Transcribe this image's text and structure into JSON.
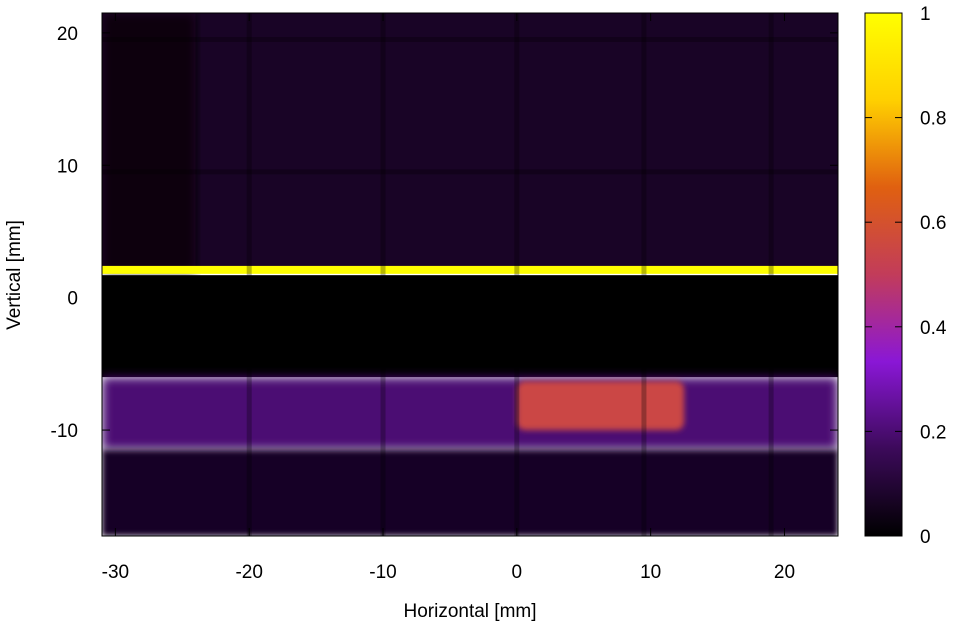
{
  "chart_data": {
    "type": "heatmap",
    "title": "",
    "xlabel": "Horizontal [mm]",
    "ylabel": "Vertical [mm]",
    "xlim": [
      -31,
      24
    ],
    "ylim": [
      -18,
      21.5
    ],
    "x_ticks": [
      -30,
      -20,
      -10,
      0,
      10,
      20
    ],
    "x_tick_labels": [
      "-30",
      "-20",
      "-10",
      "0",
      "10",
      "20"
    ],
    "y_ticks": [
      -10,
      0,
      10,
      20
    ],
    "y_tick_labels": [
      "-10",
      "0",
      "10",
      "20"
    ],
    "colorbar": {
      "range": [
        0,
        1
      ],
      "ticks": [
        0,
        0.2,
        0.4,
        0.6,
        0.8,
        1
      ],
      "tick_labels": [
        "0",
        "0.2",
        "0.4",
        "0.6",
        "0.8",
        "1"
      ],
      "colormap": [
        "#000000",
        "#3c0a5a",
        "#8a17d6",
        "#c23c5a",
        "#e06010",
        "#ffd000",
        "#ffff00"
      ]
    },
    "regions": [
      {
        "name": "background-upper",
        "x": [
          -31,
          24
        ],
        "y": [
          2,
          21.5
        ],
        "value": 0.07
      },
      {
        "name": "shadow-left",
        "x": [
          -31,
          -24
        ],
        "y": [
          2,
          21.5
        ],
        "value": 0.02
      },
      {
        "name": "dark-gap",
        "x": [
          -31,
          24
        ],
        "y": [
          -6,
          1.7
        ],
        "value": 0.0
      },
      {
        "name": "beam-band",
        "x": [
          -31,
          24
        ],
        "y": [
          -11.5,
          -6
        ],
        "value": 0.2
      },
      {
        "name": "lower-region",
        "x": [
          -31,
          24
        ],
        "y": [
          -18,
          -11.5
        ],
        "value": 0.07
      },
      {
        "name": "hot-spot",
        "x": [
          0,
          12.5
        ],
        "y": [
          -10,
          -6.3
        ],
        "value": 0.55
      },
      {
        "name": "bright-line",
        "x": [
          -31,
          24
        ],
        "y": [
          1.8,
          2.4
        ],
        "value": 1.0
      }
    ],
    "grid_lines_x": [
      -20,
      -10,
      0,
      9.5,
      19
    ],
    "grid_lines_y": [
      19.5,
      9.5
    ]
  }
}
